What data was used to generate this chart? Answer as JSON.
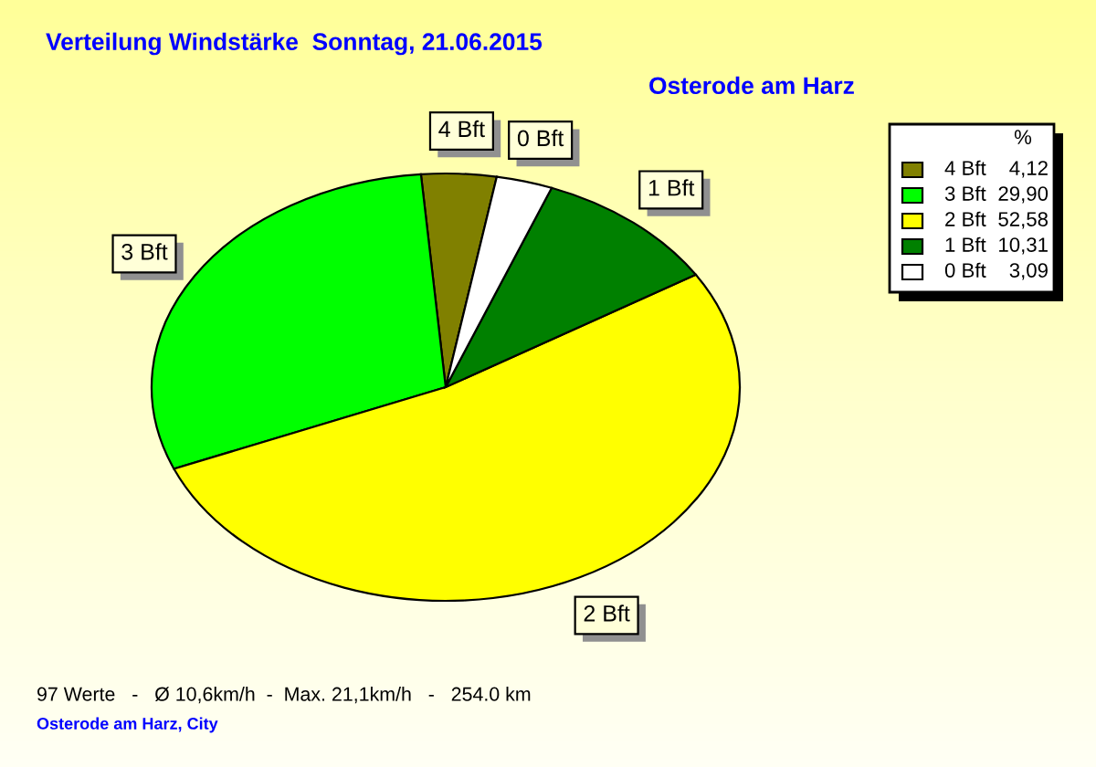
{
  "chart_data": {
    "type": "pie",
    "title": "Verteilung Windstärke  Sonntag, 21.06.2015",
    "subtitle": "Osterode am Harz",
    "categories": [
      "4 Bft",
      "3 Bft",
      "2 Bft",
      "1 Bft",
      "0 Bft"
    ],
    "values": [
      4.12,
      29.9,
      52.58,
      10.31,
      3.09
    ],
    "colors": [
      "#808000",
      "#00ff00",
      "#ffff00",
      "#008000",
      "#ffffff"
    ],
    "value_labels": [
      "4,12",
      "29,90",
      "52,58",
      "10,31",
      "3,09"
    ],
    "legend_title": "%",
    "legend": "top right",
    "annotations": [
      "97 Werte   -   Ø 10,6km/h  -  Max. 21,1km/h   -   254.0 km",
      "Osterode am Harz, City"
    ]
  }
}
